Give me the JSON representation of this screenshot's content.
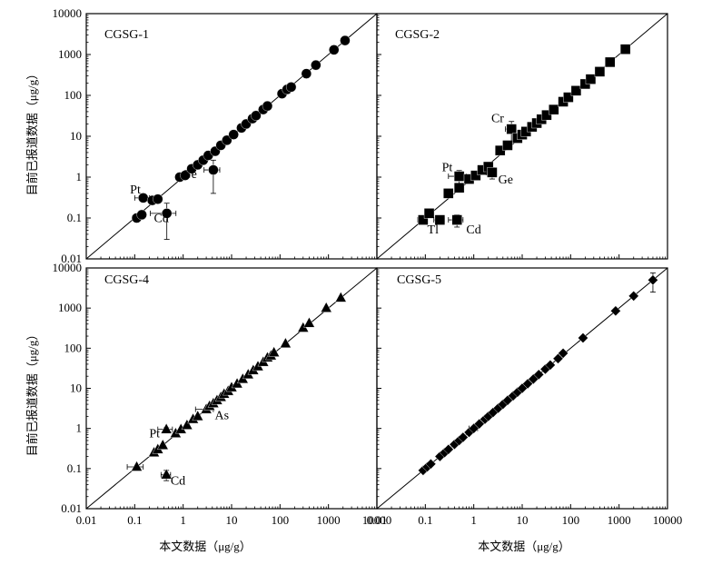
{
  "figure": {
    "xlabel": "本文数据（μg/g）",
    "ylabel": "目前已报道数据（μg/g）"
  },
  "chart_data": [
    {
      "type": "scatter",
      "title": "CGSG-1",
      "marker": "circle",
      "scale": "log",
      "xlim": [
        0.01,
        10000
      ],
      "ylim": [
        0.01,
        10000
      ],
      "reference_line": "1:1",
      "points": [
        {
          "x": 0.11,
          "y": 0.1,
          "xerr": 0.02,
          "yerr": 0
        },
        {
          "x": 0.14,
          "y": 0.12,
          "xerr": 0,
          "yerr": 0
        },
        {
          "x": 0.15,
          "y": 0.31,
          "xerr": 0.05,
          "yerr": 0
        },
        {
          "x": 0.23,
          "y": 0.27,
          "xerr": 0,
          "yerr": 0
        },
        {
          "x": 0.3,
          "y": 0.29,
          "xerr": 0,
          "yerr": 0
        },
        {
          "x": 0.46,
          "y": 0.13,
          "xerr": 0.25,
          "yerr": 0.1
        },
        {
          "x": 0.85,
          "y": 1.0,
          "xerr": 0,
          "yerr": 0
        },
        {
          "x": 1.1,
          "y": 1.1,
          "xerr": 0,
          "yerr": 0
        },
        {
          "x": 1.5,
          "y": 1.6,
          "xerr": 0,
          "yerr": 0
        },
        {
          "x": 2.0,
          "y": 2.0,
          "xerr": 0,
          "yerr": 0
        },
        {
          "x": 2.6,
          "y": 2.6,
          "xerr": 0,
          "yerr": 0
        },
        {
          "x": 3.3,
          "y": 3.4,
          "xerr": 0,
          "yerr": 0
        },
        {
          "x": 4.2,
          "y": 1.5,
          "xerr": 1.5,
          "yerr": 1.1
        },
        {
          "x": 4.6,
          "y": 4.3,
          "xerr": 0,
          "yerr": 0
        },
        {
          "x": 6.0,
          "y": 6.0,
          "xerr": 0,
          "yerr": 0
        },
        {
          "x": 8.0,
          "y": 8.0,
          "xerr": 0,
          "yerr": 0
        },
        {
          "x": 11,
          "y": 11,
          "xerr": 0,
          "yerr": 0
        },
        {
          "x": 16,
          "y": 16,
          "xerr": 0,
          "yerr": 0
        },
        {
          "x": 20,
          "y": 20,
          "xerr": 0,
          "yerr": 0
        },
        {
          "x": 27,
          "y": 27,
          "xerr": 0,
          "yerr": 0
        },
        {
          "x": 32,
          "y": 32,
          "xerr": 0,
          "yerr": 0
        },
        {
          "x": 45,
          "y": 45,
          "xerr": 0,
          "yerr": 0
        },
        {
          "x": 55,
          "y": 55,
          "xerr": 0,
          "yerr": 0
        },
        {
          "x": 110,
          "y": 110,
          "xerr": 0,
          "yerr": 0
        },
        {
          "x": 140,
          "y": 140,
          "xerr": 0,
          "yerr": 0
        },
        {
          "x": 170,
          "y": 160,
          "xerr": 0,
          "yerr": 0
        },
        {
          "x": 350,
          "y": 340,
          "xerr": 0,
          "yerr": 0
        },
        {
          "x": 550,
          "y": 550,
          "xerr": 0,
          "yerr": 0
        },
        {
          "x": 1300,
          "y": 1300,
          "xerr": 0,
          "yerr": 0
        },
        {
          "x": 2200,
          "y": 2200,
          "xerr": 0,
          "yerr": 0
        }
      ],
      "annotations": [
        {
          "text": "Pt",
          "x": 0.08,
          "y": 0.4
        },
        {
          "text": "Cd",
          "x": 0.25,
          "y": 0.08
        },
        {
          "text": "Ge",
          "x": 0.95,
          "y": 0.95
        }
      ]
    },
    {
      "type": "scatter",
      "title": "CGSG-2",
      "marker": "square",
      "scale": "log",
      "xlim": [
        0.01,
        10000
      ],
      "ylim": [
        0.01,
        10000
      ],
      "reference_line": "1:1",
      "points": [
        {
          "x": 0.09,
          "y": 0.09,
          "xerr": 0.02,
          "yerr": 0
        },
        {
          "x": 0.12,
          "y": 0.13,
          "xerr": 0,
          "yerr": 0.02
        },
        {
          "x": 0.2,
          "y": 0.09,
          "xerr": 0.05,
          "yerr": 0.02
        },
        {
          "x": 0.3,
          "y": 0.4,
          "xerr": 0,
          "yerr": 0
        },
        {
          "x": 0.45,
          "y": 0.09,
          "xerr": 0.15,
          "yerr": 0.03
        },
        {
          "x": 0.5,
          "y": 0.55,
          "xerr": 0,
          "yerr": 0
        },
        {
          "x": 0.5,
          "y": 1.05,
          "xerr": 0.2,
          "yerr": 0.4
        },
        {
          "x": 0.8,
          "y": 0.9,
          "xerr": 0,
          "yerr": 0
        },
        {
          "x": 1.1,
          "y": 1.1,
          "xerr": 0,
          "yerr": 0
        },
        {
          "x": 1.5,
          "y": 1.5,
          "xerr": 0,
          "yerr": 0
        },
        {
          "x": 2.0,
          "y": 1.8,
          "xerr": 0,
          "yerr": 0
        },
        {
          "x": 2.4,
          "y": 1.3,
          "xerr": 0.6,
          "yerr": 0.4
        },
        {
          "x": 3.5,
          "y": 4.5,
          "xerr": 0,
          "yerr": 0
        },
        {
          "x": 5,
          "y": 6,
          "xerr": 0,
          "yerr": 0
        },
        {
          "x": 6,
          "y": 15,
          "xerr": 1.5,
          "yerr": 8
        },
        {
          "x": 8,
          "y": 9,
          "xerr": 0,
          "yerr": 0
        },
        {
          "x": 10,
          "y": 11,
          "xerr": 0,
          "yerr": 0
        },
        {
          "x": 12,
          "y": 13,
          "xerr": 0,
          "yerr": 0
        },
        {
          "x": 16,
          "y": 17,
          "xerr": 0,
          "yerr": 0
        },
        {
          "x": 20,
          "y": 21,
          "xerr": 0,
          "yerr": 0
        },
        {
          "x": 25,
          "y": 26,
          "xerr": 0,
          "yerr": 0
        },
        {
          "x": 32,
          "y": 33,
          "xerr": 0,
          "yerr": 0
        },
        {
          "x": 45,
          "y": 45,
          "xerr": 0,
          "yerr": 0
        },
        {
          "x": 70,
          "y": 70,
          "xerr": 0,
          "yerr": 0
        },
        {
          "x": 90,
          "y": 90,
          "xerr": 0,
          "yerr": 0
        },
        {
          "x": 130,
          "y": 130,
          "xerr": 0,
          "yerr": 0
        },
        {
          "x": 200,
          "y": 190,
          "xerr": 0,
          "yerr": 0
        },
        {
          "x": 260,
          "y": 250,
          "xerr": 0,
          "yerr": 0
        },
        {
          "x": 400,
          "y": 380,
          "xerr": 0,
          "yerr": 0
        },
        {
          "x": 650,
          "y": 650,
          "xerr": 0,
          "yerr": 0
        },
        {
          "x": 1350,
          "y": 1350,
          "xerr": 0,
          "yerr": 0
        }
      ],
      "annotations": [
        {
          "text": "Cr",
          "x": 2.3,
          "y": 22
        },
        {
          "text": "Pt",
          "x": 0.22,
          "y": 1.4
        },
        {
          "text": "Ge",
          "x": 3.2,
          "y": 0.7
        },
        {
          "text": "Tl",
          "x": 0.11,
          "y": 0.042
        },
        {
          "text": "Cd",
          "x": 0.7,
          "y": 0.042
        }
      ]
    },
    {
      "type": "scatter",
      "title": "CGSG-4",
      "marker": "triangle",
      "scale": "log",
      "xlim": [
        0.01,
        10000
      ],
      "ylim": [
        0.01,
        10000
      ],
      "reference_line": "1:1",
      "points": [
        {
          "x": 0.11,
          "y": 0.11,
          "xerr": 0.04,
          "yerr": 0
        },
        {
          "x": 0.25,
          "y": 0.25,
          "xerr": 0,
          "yerr": 0
        },
        {
          "x": 0.3,
          "y": 0.3,
          "xerr": 0,
          "yerr": 0
        },
        {
          "x": 0.38,
          "y": 0.38,
          "xerr": 0,
          "yerr": 0
        },
        {
          "x": 0.45,
          "y": 0.07,
          "xerr": 0.1,
          "yerr": 0.02
        },
        {
          "x": 0.45,
          "y": 0.95,
          "xerr": 0.15,
          "yerr": 0.1
        },
        {
          "x": 0.7,
          "y": 0.75,
          "xerr": 0,
          "yerr": 0
        },
        {
          "x": 0.9,
          "y": 0.95,
          "xerr": 0,
          "yerr": 0
        },
        {
          "x": 1.2,
          "y": 1.2,
          "xerr": 0,
          "yerr": 0
        },
        {
          "x": 1.6,
          "y": 1.7,
          "xerr": 0,
          "yerr": 0
        },
        {
          "x": 2.0,
          "y": 2.0,
          "xerr": 0,
          "yerr": 0
        },
        {
          "x": 3.0,
          "y": 3.0,
          "xerr": 1.2,
          "yerr": 0
        },
        {
          "x": 3.5,
          "y": 3.6,
          "xerr": 0,
          "yerr": 0
        },
        {
          "x": 4.2,
          "y": 4.2,
          "xerr": 0,
          "yerr": 0
        },
        {
          "x": 5,
          "y": 5,
          "xerr": 0,
          "yerr": 0
        },
        {
          "x": 6,
          "y": 6,
          "xerr": 0,
          "yerr": 0
        },
        {
          "x": 7,
          "y": 7.2,
          "xerr": 0,
          "yerr": 0
        },
        {
          "x": 8.5,
          "y": 8.5,
          "xerr": 0,
          "yerr": 0
        },
        {
          "x": 10,
          "y": 10.5,
          "xerr": 0,
          "yerr": 0
        },
        {
          "x": 13,
          "y": 13,
          "xerr": 0,
          "yerr": 0
        },
        {
          "x": 17,
          "y": 17,
          "xerr": 0,
          "yerr": 0
        },
        {
          "x": 22,
          "y": 22,
          "xerr": 0,
          "yerr": 0
        },
        {
          "x": 28,
          "y": 28,
          "xerr": 0,
          "yerr": 0
        },
        {
          "x": 35,
          "y": 35,
          "xerr": 0,
          "yerr": 0
        },
        {
          "x": 45,
          "y": 45,
          "xerr": 0,
          "yerr": 0
        },
        {
          "x": 55,
          "y": 58,
          "xerr": 0,
          "yerr": 0
        },
        {
          "x": 65,
          "y": 65,
          "xerr": 0,
          "yerr": 0
        },
        {
          "x": 75,
          "y": 78,
          "xerr": 0,
          "yerr": 0
        },
        {
          "x": 130,
          "y": 130,
          "xerr": 0,
          "yerr": 0
        },
        {
          "x": 300,
          "y": 320,
          "xerr": 0,
          "yerr": 0
        },
        {
          "x": 400,
          "y": 420,
          "xerr": 0,
          "yerr": 0
        },
        {
          "x": 900,
          "y": 1000,
          "xerr": 0,
          "yerr": 0
        },
        {
          "x": 1800,
          "y": 1800,
          "xerr": 0,
          "yerr": 0
        }
      ],
      "annotations": [
        {
          "text": "As",
          "x": 4.5,
          "y": 1.7
        },
        {
          "text": "Pt",
          "x": 0.2,
          "y": 0.6
        },
        {
          "text": "Cd",
          "x": 0.55,
          "y": 0.04
        }
      ]
    },
    {
      "type": "scatter",
      "title": "CGSG-5",
      "marker": "diamond",
      "scale": "log",
      "xlim": [
        0.01,
        10000
      ],
      "ylim": [
        0.01,
        10000
      ],
      "reference_line": "1:1",
      "points": [
        {
          "x": 0.09,
          "y": 0.09,
          "xerr": 0,
          "yerr": 0
        },
        {
          "x": 0.11,
          "y": 0.11,
          "xerr": 0,
          "yerr": 0
        },
        {
          "x": 0.13,
          "y": 0.13,
          "xerr": 0,
          "yerr": 0
        },
        {
          "x": 0.2,
          "y": 0.2,
          "xerr": 0,
          "yerr": 0
        },
        {
          "x": 0.25,
          "y": 0.25,
          "xerr": 0,
          "yerr": 0
        },
        {
          "x": 0.3,
          "y": 0.3,
          "xerr": 0,
          "yerr": 0
        },
        {
          "x": 0.4,
          "y": 0.4,
          "xerr": 0,
          "yerr": 0
        },
        {
          "x": 0.5,
          "y": 0.5,
          "xerr": 0,
          "yerr": 0
        },
        {
          "x": 0.6,
          "y": 0.6,
          "xerr": 0,
          "yerr": 0
        },
        {
          "x": 0.8,
          "y": 0.8,
          "xerr": 0,
          "yerr": 0
        },
        {
          "x": 1.0,
          "y": 1.0,
          "xerr": 0.2,
          "yerr": 0
        },
        {
          "x": 1.3,
          "y": 1.3,
          "xerr": 0,
          "yerr": 0
        },
        {
          "x": 1.7,
          "y": 1.7,
          "xerr": 0,
          "yerr": 0
        },
        {
          "x": 2.0,
          "y": 2.0,
          "xerr": 0,
          "yerr": 0
        },
        {
          "x": 2.5,
          "y": 2.5,
          "xerr": 0,
          "yerr": 0
        },
        {
          "x": 3.2,
          "y": 3.2,
          "xerr": 0,
          "yerr": 0
        },
        {
          "x": 4.0,
          "y": 4.0,
          "xerr": 0,
          "yerr": 0
        },
        {
          "x": 5.0,
          "y": 5.0,
          "xerr": 0,
          "yerr": 0
        },
        {
          "x": 6.5,
          "y": 6.5,
          "xerr": 0,
          "yerr": 0
        },
        {
          "x": 8,
          "y": 8,
          "xerr": 0,
          "yerr": 0
        },
        {
          "x": 10,
          "y": 10,
          "xerr": 0,
          "yerr": 0
        },
        {
          "x": 13,
          "y": 13,
          "xerr": 0,
          "yerr": 0
        },
        {
          "x": 17,
          "y": 17,
          "xerr": 0,
          "yerr": 0
        },
        {
          "x": 22,
          "y": 22,
          "xerr": 0,
          "yerr": 0
        },
        {
          "x": 30,
          "y": 30,
          "xerr": 0,
          "yerr": 0
        },
        {
          "x": 38,
          "y": 38,
          "xerr": 0,
          "yerr": 0
        },
        {
          "x": 55,
          "y": 55,
          "xerr": 0,
          "yerr": 0
        },
        {
          "x": 70,
          "y": 75,
          "xerr": 0,
          "yerr": 0
        },
        {
          "x": 180,
          "y": 180,
          "xerr": 0,
          "yerr": 0
        },
        {
          "x": 850,
          "y": 850,
          "xerr": 0,
          "yerr": 0
        },
        {
          "x": 2000,
          "y": 2000,
          "xerr": 0,
          "yerr": 0
        },
        {
          "x": 5000,
          "y": 5000,
          "xerr": 0,
          "yerr": 2500
        }
      ],
      "annotations": []
    }
  ]
}
